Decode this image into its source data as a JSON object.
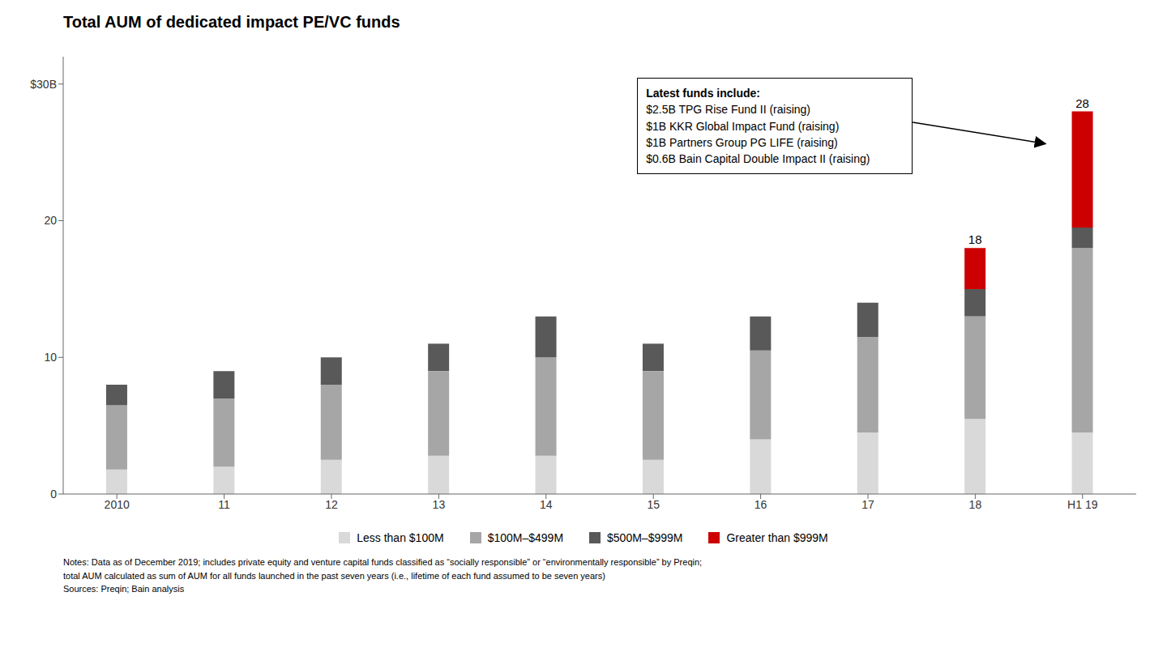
{
  "chart_data": {
    "type": "bar",
    "title": "Total AUM of dedicated impact PE/VC funds",
    "categories": [
      "2010",
      "11",
      "12",
      "13",
      "14",
      "15",
      "16",
      "17",
      "18",
      "H1 19"
    ],
    "series": [
      {
        "name": "Less than $100M",
        "color": "#d9d9d9",
        "values": [
          1.8,
          2.0,
          2.5,
          2.8,
          2.8,
          2.5,
          4.0,
          4.5,
          5.5,
          4.5
        ]
      },
      {
        "name": "$100M–$499M",
        "color": "#a6a6a6",
        "values": [
          4.7,
          5.0,
          5.5,
          6.2,
          7.2,
          6.5,
          6.5,
          7.0,
          7.5,
          13.5
        ]
      },
      {
        "name": "$500M–$999M",
        "color": "#595959",
        "values": [
          1.5,
          2.0,
          2.0,
          2.0,
          3.0,
          2.0,
          2.5,
          2.5,
          2.0,
          1.5
        ]
      },
      {
        "name": "Greater than $999M",
        "color": "#cc0000",
        "values": [
          0.0,
          0.0,
          0.0,
          0.0,
          0.0,
          0.0,
          0.0,
          0.0,
          3.0,
          8.5
        ]
      }
    ],
    "stacked": true,
    "totals": [
      8,
      9,
      10,
      11,
      13,
      11,
      13,
      14,
      18,
      28
    ],
    "ylim": [
      0,
      32
    ],
    "yticks": [
      0,
      10,
      20,
      {
        "value": 30,
        "label": "$30B"
      }
    ],
    "grid": false,
    "legend": "bottom",
    "annotation": {
      "title": "Latest funds include:",
      "lines": [
        "$2.5B TPG Rise Fund II (raising)",
        "$1B KKR Global Impact Fund (raising)",
        "$1B Partners Group PG LIFE (raising)",
        "$0.6B Bain Capital Double Impact II (raising)"
      ]
    },
    "notes": [
      "Notes: Data as of December 2019; includes private equity and venture capital funds classified as “socially responsible” or “environmentally responsible” by Preqin;",
      "total AUM calculated as sum of AUM for all funds launched in the past seven years (i.e., lifetime of each fund assumed to be seven years)",
      "Sources: Preqin; Bain analysis"
    ]
  }
}
